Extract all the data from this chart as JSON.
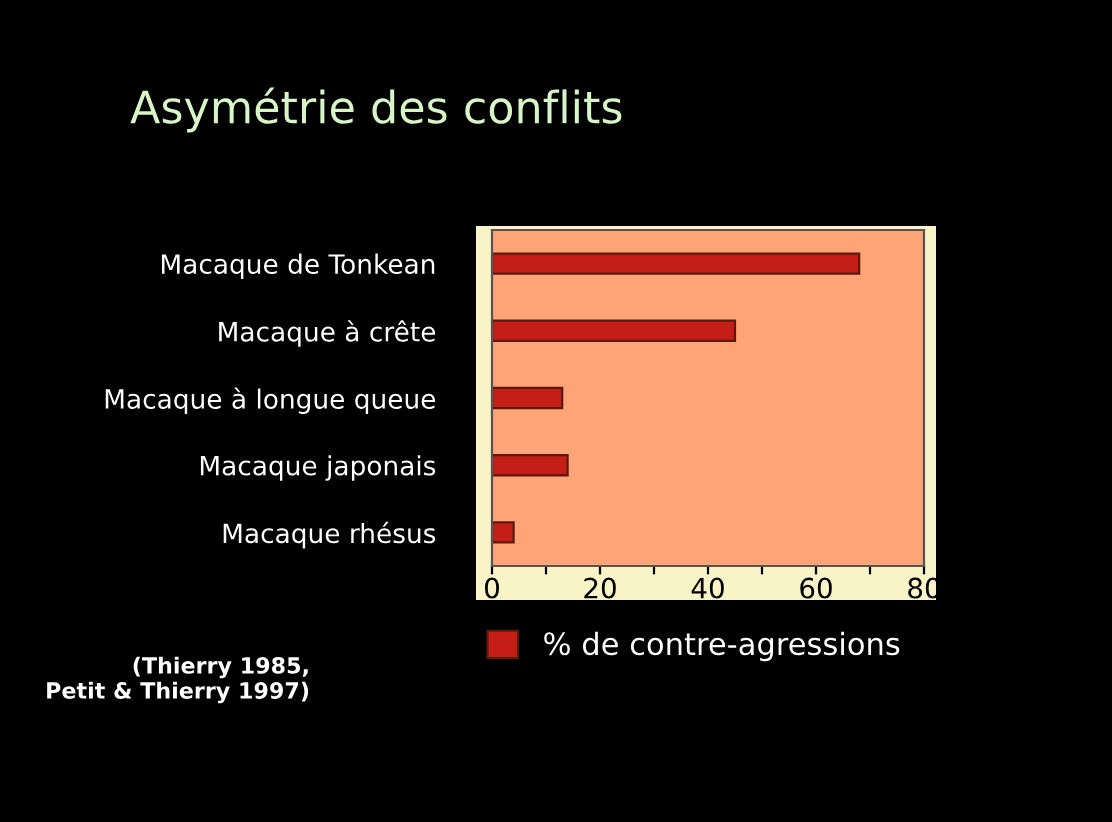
{
  "chart_data": {
    "type": "bar",
    "orientation": "horizontal",
    "title": "Asymétrie des conflits",
    "categories": [
      "Macaque de Tonkean",
      "Macaque à crête",
      "Macaque à longue queue",
      "Macaque japonais",
      "Macaque rhésus"
    ],
    "series": [
      {
        "name": "% de contre-agressions",
        "color": "#c41e16",
        "values": [
          68,
          45,
          13,
          14,
          4
        ]
      }
    ],
    "xlim": [
      0,
      80
    ],
    "xticks": [
      0,
      {
        "value": 10,
        "label": null
      },
      20,
      {
        "value": 30,
        "label": null
      },
      40,
      {
        "value": 50,
        "label": null
      },
      60,
      {
        "value": 70,
        "label": null
      },
      80
    ],
    "grid": false,
    "legend": "bottom",
    "annotations": [
      "(Thierry 1985,\nPetit & Thierry 1997)"
    ]
  }
}
